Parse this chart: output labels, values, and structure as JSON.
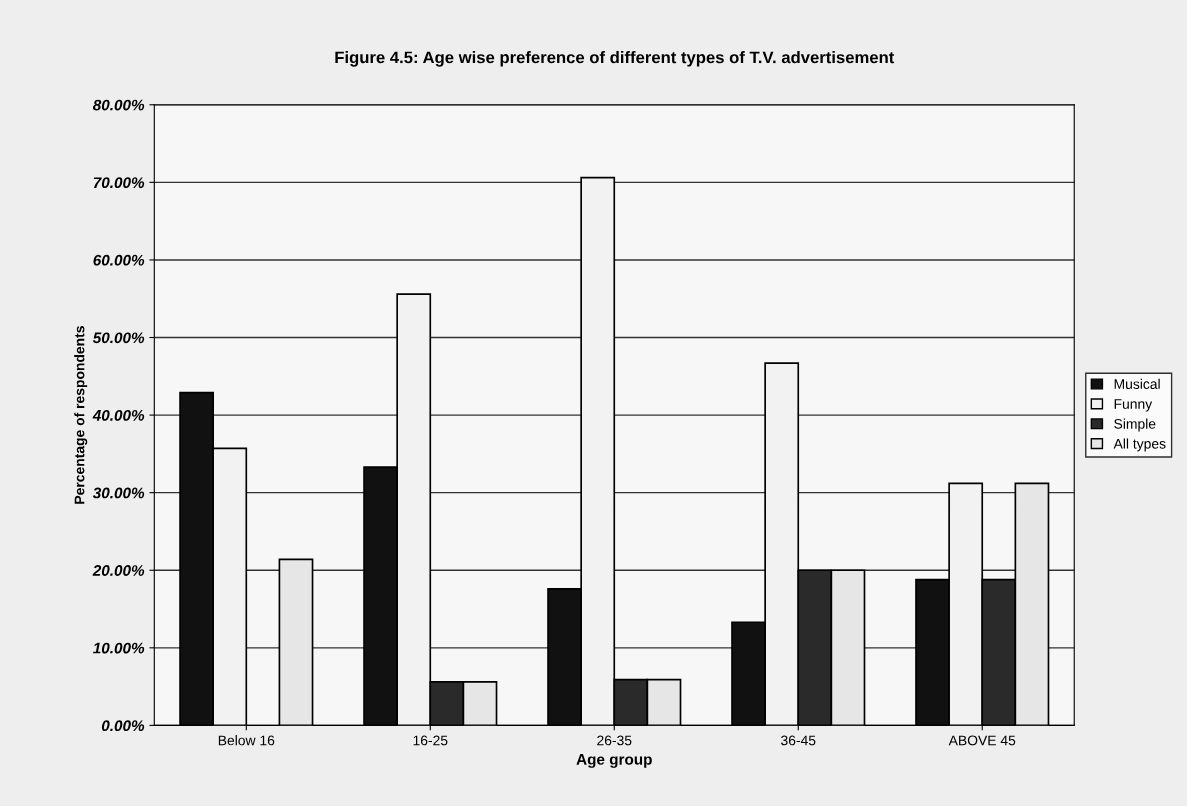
{
  "chart_data": {
    "type": "bar",
    "title": "Figure 4.5: Age wise preference of different types of T.V. advertisement",
    "xlabel": "Age group",
    "ylabel": "Percentage of respondents",
    "categories": [
      "Below 16",
      "16-25",
      "26-35",
      "36-45",
      "ABOVE 45"
    ],
    "series": [
      {
        "name": "Musical",
        "color": "#111111",
        "values": [
          42.9,
          33.3,
          17.6,
          13.3,
          18.8
        ]
      },
      {
        "name": "Funny",
        "color": "#f2f2f2",
        "values": [
          35.7,
          55.6,
          70.6,
          46.7,
          31.2
        ]
      },
      {
        "name": "Simple",
        "color": "#2a2a2a",
        "values": [
          null,
          5.6,
          5.9,
          20,
          18.8
        ]
      },
      {
        "name": "All types",
        "color": "#e6e6e6",
        "values": [
          21.4,
          5.6,
          5.9,
          20,
          31.2
        ]
      }
    ],
    "ylim": [
      0,
      80
    ],
    "yticks": [
      {
        "value": 0,
        "label": "0.00%"
      },
      {
        "value": 10,
        "label": "10.00%"
      },
      {
        "value": 20,
        "label": "20.00%"
      },
      {
        "value": 30,
        "label": "30.00%"
      },
      {
        "value": 40,
        "label": "40.00%"
      },
      {
        "value": 50,
        "label": "50.00%"
      },
      {
        "value": 60,
        "label": "60.00%"
      },
      {
        "value": 70,
        "label": "70.00%"
      },
      {
        "value": 80,
        "label": "80.00%"
      }
    ],
    "grid": "y",
    "legend": "right"
  }
}
